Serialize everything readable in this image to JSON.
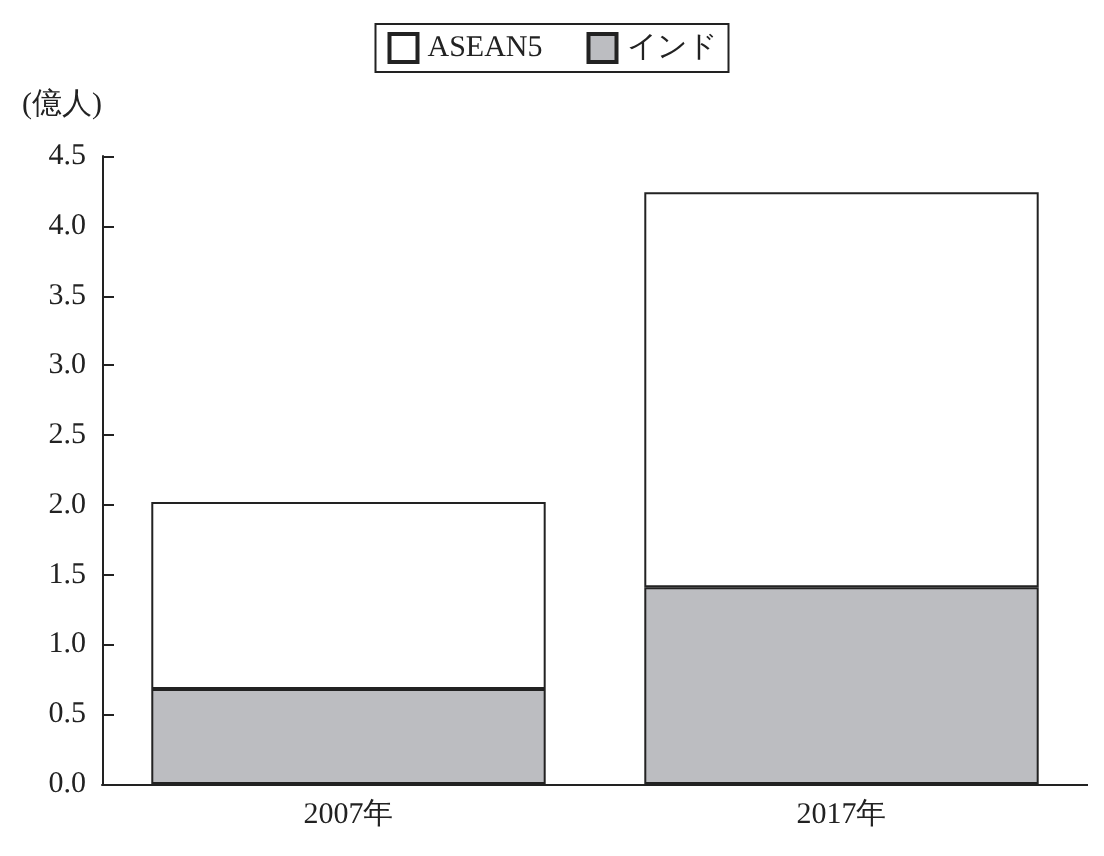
{
  "chart_data": {
    "type": "bar",
    "stacked": true,
    "ylabel": "(億人)",
    "categories": [
      "2007年",
      "2017年"
    ],
    "series": [
      {
        "name": "インド",
        "color": "#bcbdc1",
        "values": [
          0.68,
          1.41
        ]
      },
      {
        "name": "ASEAN5",
        "color": "#ffffff",
        "values": [
          1.34,
          2.83
        ]
      }
    ],
    "ylim": [
      0,
      4.5
    ],
    "yticks": [
      {
        "value": 0,
        "label": "0.0"
      },
      0.5,
      {
        "value": 1,
        "label": "1.0"
      },
      1.5,
      {
        "value": 2,
        "label": "2.0"
      },
      2.5,
      {
        "value": 3,
        "label": "3.0"
      },
      3.5,
      {
        "value": 4,
        "label": "4.0"
      },
      4.5
    ],
    "grid": false,
    "legend": "top"
  }
}
